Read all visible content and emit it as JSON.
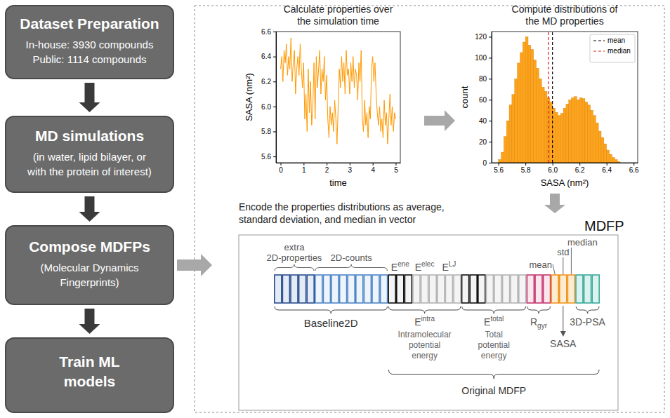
{
  "flow": [
    {
      "title": [
        "Dataset Preparation"
      ],
      "lines": [
        "In-house: 3930 compounds",
        "Public: 1114 compounds"
      ]
    },
    {
      "title": [
        "MD simulations"
      ],
      "lines": [
        "(in water, lipid bilayer, or",
        "with the protein of interest)"
      ]
    },
    {
      "title": [
        "Compose MDFPs"
      ],
      "lines": [
        "(Molecular Dynamics",
        "Fingerprints)"
      ]
    },
    {
      "title": [
        "Train ML",
        "models"
      ]
    }
  ],
  "chart_data": [
    {
      "type": "line",
      "title": [
        "Calculate properties over",
        "the simulation time"
      ],
      "x_label": "time",
      "y_label": "SASA (nm²)",
      "color": "#ff9900",
      "x": [
        0,
        0.05,
        0.1,
        0.15,
        0.2,
        0.25,
        0.3,
        0.35,
        0.4,
        0.45,
        0.5,
        0.55,
        0.6,
        0.65,
        0.7,
        0.75,
        0.8,
        0.85,
        0.9,
        0.95,
        1,
        1.05,
        1.1,
        1.15,
        1.2,
        1.25,
        1.3,
        1.35,
        1.4,
        1.45,
        1.5,
        1.55,
        1.6,
        1.65,
        1.7,
        1.75,
        1.8,
        1.85,
        1.9,
        1.95,
        2,
        2.05,
        2.1,
        2.15,
        2.2,
        2.25,
        2.3,
        2.35,
        2.4,
        2.45,
        2.5,
        2.55,
        2.6,
        2.65,
        2.7,
        2.75,
        2.8,
        2.85,
        2.9,
        2.95,
        3,
        3.05,
        3.1,
        3.15,
        3.2,
        3.25,
        3.3,
        3.35,
        3.4,
        3.45,
        3.5,
        3.55,
        3.6,
        3.65,
        3.7,
        3.75,
        3.8,
        3.85,
        3.9,
        3.95,
        4,
        4.05,
        4.1,
        4.15,
        4.2,
        4.25,
        4.3,
        4.35,
        4.4,
        4.45,
        4.5,
        4.55,
        4.6,
        4.65,
        4.7,
        4.75,
        4.8,
        4.85,
        4.9,
        4.95,
        5
      ],
      "values": [
        6.3,
        6.4,
        6.2,
        6.45,
        6.35,
        6.5,
        6.25,
        6.4,
        6.3,
        6.55,
        6.2,
        6.35,
        6.45,
        6.1,
        6.3,
        6.4,
        6.25,
        6.5,
        6.3,
        6.15,
        6.35,
        5.9,
        6.1,
        5.8,
        6.3,
        5.95,
        6.2,
        5.85,
        6.0,
        6.35,
        5.9,
        6.4,
        6.15,
        6.3,
        6.45,
        6.1,
        6.3,
        6.2,
        6.4,
        6.05,
        6.25,
        5.9,
        5.75,
        6.0,
        5.85,
        5.95,
        5.8,
        6.05,
        5.9,
        5.7,
        6.0,
        6.3,
        6.15,
        6.4,
        6.2,
        6.35,
        6.1,
        6.45,
        6.25,
        6.3,
        6.1,
        6.35,
        6.2,
        6.4,
        6.15,
        6.3,
        6.25,
        6.05,
        6.35,
        6.2,
        6.45,
        5.9,
        5.8,
        6.05,
        5.85,
        5.95,
        5.75,
        6.0,
        5.9,
        6.3,
        6.4,
        6.2,
        6.35,
        6.1,
        5.95,
        5.85,
        6.0,
        5.8,
        5.9,
        5.75,
        6.05,
        5.85,
        5.95,
        5.7,
        5.9,
        6.1,
        5.85,
        6.0,
        5.8,
        5.95,
        5.9
      ],
      "xlim": [
        -0.2,
        5.2
      ],
      "xticks": [
        0,
        1,
        2,
        3,
        4,
        5
      ],
      "ylim": [
        5.55,
        6.6
      ],
      "yticks": [
        5.6,
        5.8,
        {
          "value": 6.0,
          "label": "6.0"
        },
        6.2,
        6.4,
        6.6
      ],
      "grid": false
    },
    {
      "type": "histogram",
      "title": [
        "Compute distributions of",
        "the MD properties"
      ],
      "x_label": "SASA (nm²)",
      "y_label": "count",
      "color": "#ffa31a",
      "bins": [
        5.6,
        5.62,
        5.64,
        5.66,
        5.68,
        5.7,
        5.72,
        5.74,
        5.76,
        5.78,
        5.8,
        5.82,
        5.84,
        5.86,
        5.88,
        5.9,
        5.92,
        5.94,
        5.96,
        5.98,
        6,
        6.02,
        6.04,
        6.06,
        6.08,
        6.1,
        6.12,
        6.14,
        6.16,
        6.18,
        6.2,
        6.22,
        6.24,
        6.26,
        6.28,
        6.3,
        6.32,
        6.34,
        6.36,
        6.38,
        6.4,
        6.42,
        6.44,
        6.46,
        6.48,
        6.5
      ],
      "values": [
        3,
        10,
        25,
        40,
        55,
        65,
        80,
        95,
        105,
        115,
        120,
        112,
        108,
        98,
        90,
        80,
        72,
        68,
        62,
        58,
        52,
        48,
        45,
        47,
        52,
        56,
        60,
        62,
        63,
        60,
        62,
        61,
        58,
        55,
        50,
        45,
        38,
        30,
        24,
        18,
        12,
        8,
        5,
        3,
        1
      ],
      "series": [
        {
          "name": "mean",
          "type": "vline",
          "values": [
            6.0
          ],
          "color": "#000000",
          "line_style": "dashed"
        },
        {
          "name": "median",
          "type": "vline",
          "values": [
            5.97
          ],
          "color": "#e41a1c",
          "line_style": "dashed"
        }
      ],
      "legend": "upper right",
      "xlim": [
        5.55,
        6.63
      ],
      "xticks": [
        5.6,
        5.8,
        {
          "value": 6.0,
          "label": "6.0"
        },
        6.2,
        6.4,
        6.6
      ],
      "ylim": [
        0,
        125
      ],
      "yticks": [
        0,
        20,
        40,
        60,
        80,
        100,
        120
      ],
      "grid": false
    }
  ],
  "encode_text": [
    "Encode the properties distributions as average,",
    "standard deviation, and median in vector"
  ],
  "mdfp": {
    "title": "MDFP",
    "top_labels": [
      {
        "lines": [
          "extra",
          "2D-properties"
        ]
      },
      {
        "lines": [
          "2D-counts"
        ]
      },
      {
        "text": "E",
        "sup": "ene"
      },
      {
        "text": "E",
        "sup": "elec"
      },
      {
        "text": "E",
        "sup": "LJ"
      }
    ],
    "stat_labels": [
      "mean",
      "std",
      "median"
    ],
    "bottom_labels": [
      {
        "title": {
          "text": "Baseline2D"
        }
      },
      {
        "title": {
          "text": "E",
          "sup": "intra"
        },
        "lines": [
          "Intramolecular",
          "potential",
          "energy"
        ]
      },
      {
        "title": {
          "text": "E",
          "sup": "total"
        },
        "lines": [
          "Total",
          "potential",
          "energy"
        ]
      },
      {
        "title": {
          "text": "R",
          "sub": "gyr"
        }
      },
      {
        "title": {
          "text": "SASA"
        }
      },
      {
        "title": {
          "text": "3D-PSA"
        }
      }
    ],
    "footer": "Original MDFP"
  }
}
